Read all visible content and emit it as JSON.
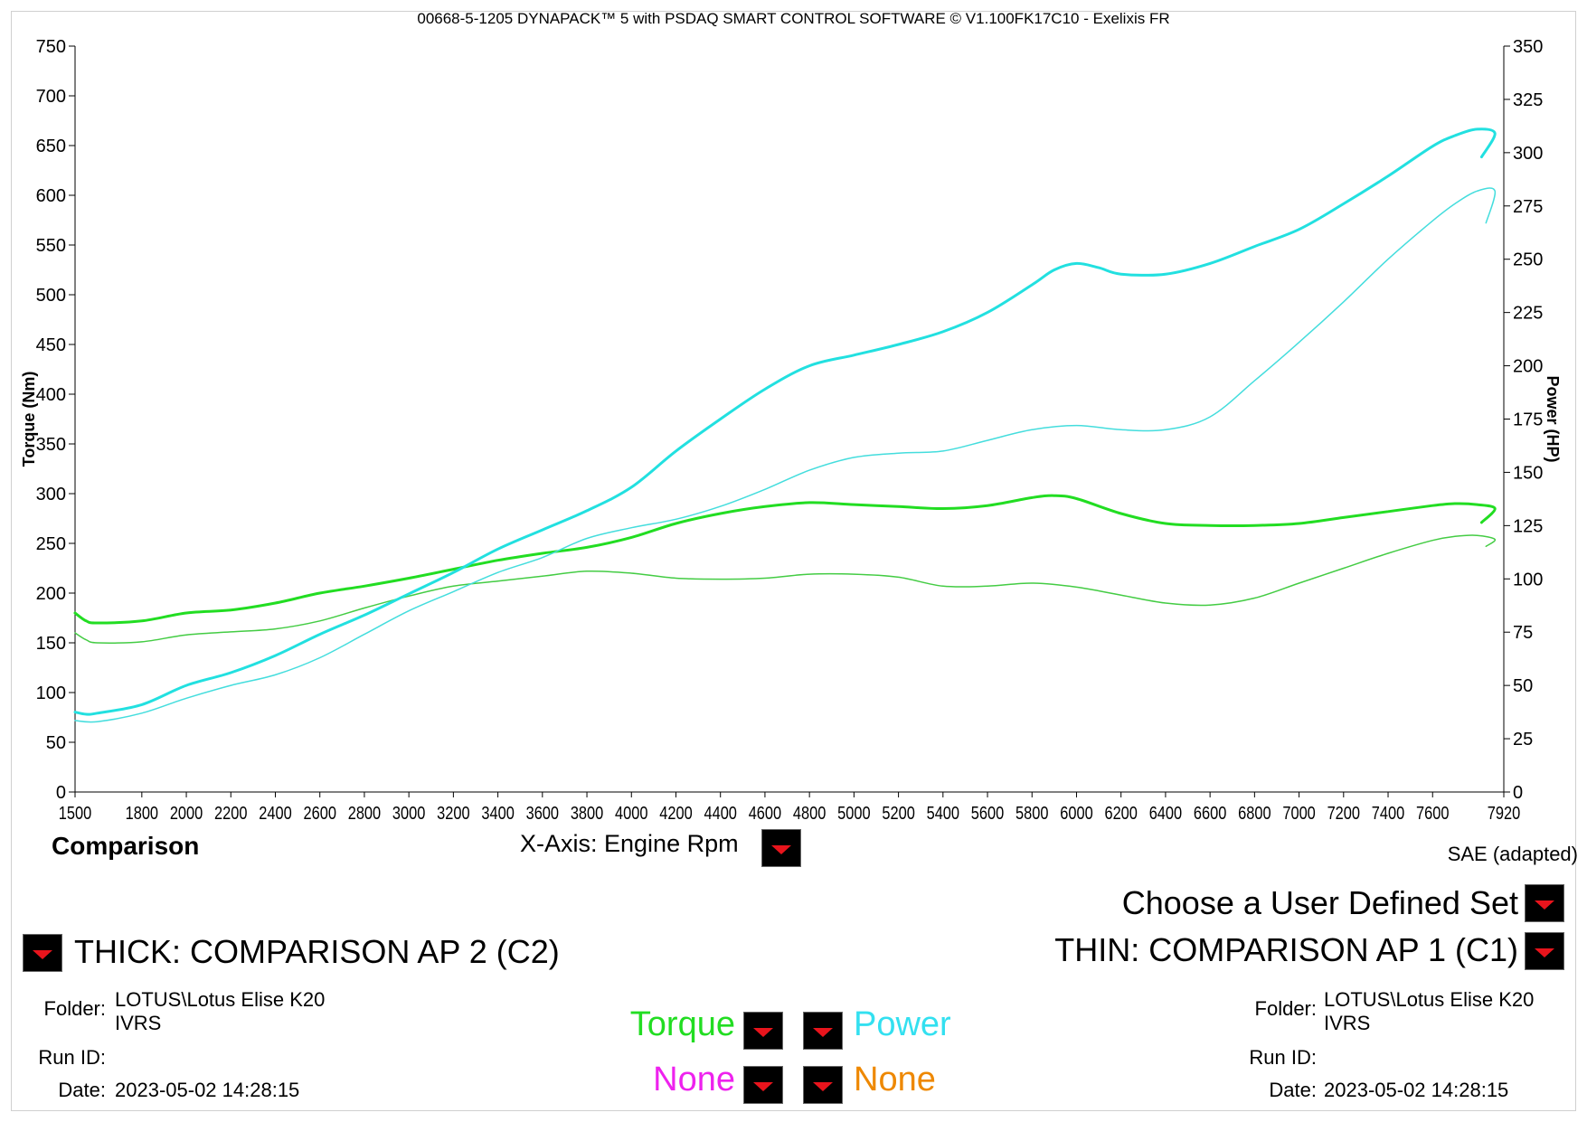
{
  "header": {
    "title": "00668-5-1205 DYNAPACK™ 5 with PSDAQ SMART CONTROL SOFTWARE © V1.100FK17C10 - Exelixis FR"
  },
  "chart_data": {
    "type": "line",
    "xlabel": "",
    "ylabel_left": "Torque (Nm)",
    "ylabel_right": "Power (HP)",
    "xlim": [
      1500,
      7920
    ],
    "ylim_left": [
      0,
      750
    ],
    "ylim_right": [
      0,
      350
    ],
    "x_ticks": [
      "1500",
      "1800",
      "2000",
      "2200",
      "2400",
      "2600",
      "2800",
      "3000",
      "3200",
      "3400",
      "3600",
      "3800",
      "4000",
      "4200",
      "4400",
      "4600",
      "4800",
      "5000",
      "5200",
      "5400",
      "5600",
      "5800",
      "6000",
      "6200",
      "6400",
      "6600",
      "6800",
      "7000",
      "7200",
      "7400",
      "7600",
      "7920"
    ],
    "y_ticks_left": [
      "0",
      "50",
      "100",
      "150",
      "200",
      "250",
      "300",
      "350",
      "400",
      "450",
      "500",
      "550",
      "600",
      "650",
      "700",
      "750"
    ],
    "y_ticks_right": [
      "0",
      "25",
      "50",
      "75",
      "100",
      "125",
      "150",
      "175",
      "200",
      "225",
      "250",
      "275",
      "300",
      "325",
      "350"
    ],
    "grid": false,
    "series": [
      {
        "key": "thick_torque",
        "axis": "left",
        "color": "#22dd22",
        "width": 3,
        "x": [
          1500,
          1550,
          1600,
          1800,
          2000,
          2200,
          2400,
          2600,
          2800,
          3000,
          3200,
          3400,
          3600,
          3800,
          4000,
          4200,
          4400,
          4600,
          4800,
          5000,
          5200,
          5400,
          5600,
          5800,
          5900,
          6000,
          6200,
          6400,
          6600,
          6800,
          7000,
          7200,
          7400,
          7600,
          7700,
          7800,
          7880,
          7820
        ],
        "y": [
          180,
          172,
          170,
          172,
          180,
          183,
          190,
          200,
          207,
          215,
          224,
          233,
          240,
          246,
          256,
          270,
          280,
          287,
          291,
          289,
          287,
          285,
          288,
          296,
          298,
          295,
          280,
          270,
          268,
          268,
          270,
          276,
          282,
          288,
          290,
          289,
          285,
          271
        ]
      },
      {
        "key": "thin_torque",
        "axis": "left",
        "color": "#44cc44",
        "width": 1.5,
        "x": [
          1500,
          1550,
          1600,
          1800,
          2000,
          2200,
          2400,
          2600,
          2800,
          3000,
          3200,
          3400,
          3600,
          3800,
          4000,
          4200,
          4400,
          4600,
          4800,
          5000,
          5200,
          5400,
          5600,
          5800,
          6000,
          6200,
          6400,
          6600,
          6800,
          7000,
          7200,
          7400,
          7600,
          7700,
          7800,
          7880,
          7840
        ],
        "y": [
          160,
          153,
          150,
          151,
          158,
          161,
          164,
          172,
          185,
          197,
          207,
          212,
          217,
          222,
          220,
          215,
          214,
          215,
          219,
          219,
          216,
          207,
          207,
          210,
          206,
          198,
          190,
          188,
          195,
          210,
          225,
          240,
          253,
          257,
          258,
          254,
          247
        ]
      },
      {
        "key": "thick_power",
        "axis": "right",
        "color": "#22e0e0",
        "width": 3,
        "x": [
          1500,
          1550,
          1600,
          1800,
          2000,
          2200,
          2400,
          2600,
          2800,
          3000,
          3200,
          3400,
          3600,
          3800,
          4000,
          4200,
          4400,
          4600,
          4800,
          5000,
          5200,
          5400,
          5600,
          5800,
          5900,
          6000,
          6100,
          6200,
          6400,
          6600,
          6800,
          7000,
          7200,
          7400,
          7600,
          7700,
          7800,
          7880,
          7820
        ],
        "y": [
          37.5,
          36.5,
          37,
          41,
          50,
          56,
          64,
          74,
          83,
          93,
          103,
          114,
          123,
          132,
          143,
          160,
          175,
          189,
          200,
          205,
          210,
          216,
          225,
          238,
          245,
          248,
          246,
          243,
          243,
          248,
          256,
          264,
          276,
          289,
          303,
          308,
          311,
          309,
          298
        ]
      },
      {
        "key": "thin_power",
        "axis": "right",
        "color": "#44dddd",
        "width": 1.5,
        "x": [
          1500,
          1600,
          1800,
          2000,
          2200,
          2400,
          2600,
          2800,
          3000,
          3200,
          3400,
          3600,
          3800,
          4000,
          4200,
          4400,
          4600,
          4800,
          5000,
          5200,
          5400,
          5600,
          5800,
          6000,
          6200,
          6400,
          6600,
          6800,
          7000,
          7200,
          7400,
          7600,
          7700,
          7800,
          7880,
          7840
        ],
        "y": [
          33.5,
          33,
          37,
          44,
          50,
          55,
          63,
          74,
          85,
          94,
          103,
          110,
          119,
          124,
          128,
          134,
          142,
          151,
          157,
          159,
          160,
          165,
          170,
          172,
          170,
          170,
          176,
          193,
          211,
          230,
          250,
          268,
          276,
          282,
          282,
          267
        ]
      }
    ]
  },
  "controls": {
    "comparison_label": "Comparison",
    "x_axis_label": "X-Axis: Engine Rpm",
    "sae_label": "SAE (adapted)",
    "user_set_label": "Choose a User Defined Set",
    "thick_label": "THICK: COMPARISON AP 2 (C2)",
    "thin_label": "THIN: COMPARISON AP 1 (C1)",
    "channels": {
      "torque": {
        "label": "Torque",
        "color": "#22dd22"
      },
      "power": {
        "label": "Power",
        "color": "#33e0f0"
      },
      "none_left": {
        "label": "None",
        "color": "#ee22ee"
      },
      "none_right": {
        "label": "None",
        "color": "#ee8800"
      }
    }
  },
  "left_info": {
    "folder_label": "Folder:",
    "folder_line1": "LOTUS\\Lotus Elise K20",
    "folder_line2": "IVRS",
    "run_id_label": "Run ID:",
    "run_id": "",
    "date_label": "Date:",
    "date": "2023-05-02 14:28:15"
  },
  "right_info": {
    "folder_label": "Folder:",
    "folder_line1": "LOTUS\\Lotus Elise K20",
    "folder_line2": "IVRS",
    "run_id_label": "Run ID:",
    "run_id": "",
    "date_label": "Date:",
    "date": "2023-05-02 14:28:15"
  }
}
